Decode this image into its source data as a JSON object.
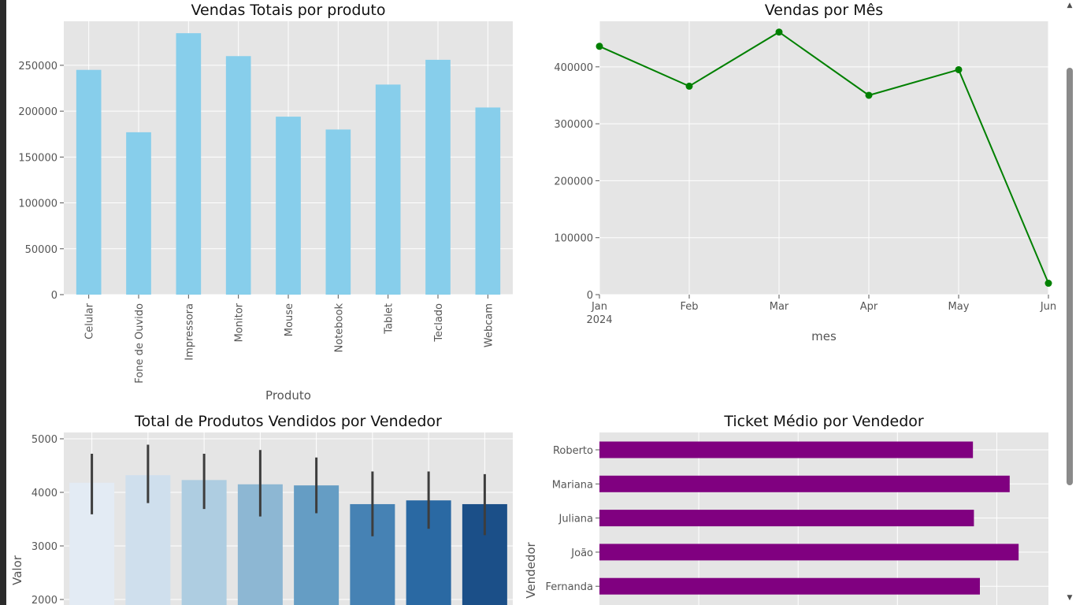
{
  "scrollbar": {
    "up_icon": "▲",
    "down_icon": "▼"
  },
  "chart_data": [
    {
      "type": "bar",
      "title": "Vendas Totais por produto",
      "xlabel": "Produto",
      "ylabel": "",
      "categories": [
        "Celular",
        "Fone de Ouvido",
        "Impressora",
        "Monitor",
        "Mouse",
        "Notebook",
        "Tablet",
        "Teclado",
        "Webcam"
      ],
      "values": [
        245000,
        177000,
        285000,
        260000,
        194000,
        180000,
        229000,
        256000,
        204000
      ],
      "ylim": [
        0,
        298000
      ],
      "yticks": [
        0,
        50000,
        100000,
        150000,
        200000,
        250000
      ],
      "color": "#87ceeb",
      "grid": true
    },
    {
      "type": "line",
      "title": "Vendas por Mês",
      "xlabel": "mes",
      "ylabel": "",
      "x": [
        "Jan",
        "Feb",
        "Mar",
        "Apr",
        "May",
        "Jun"
      ],
      "x_sublabel": "2024",
      "values": [
        436000,
        366000,
        461000,
        350000,
        395000,
        20000
      ],
      "ylim": [
        0,
        480000
      ],
      "yticks": [
        0,
        100000,
        200000,
        300000,
        400000
      ],
      "color": "#008000",
      "grid": true
    },
    {
      "type": "bar",
      "title": "Total de Produtos Vendidos por Vendedor",
      "xlabel": "",
      "ylabel": "Valor",
      "values": [
        4180,
        4320,
        4230,
        4150,
        4130,
        3780,
        3850,
        3780
      ],
      "errors": [
        [
          3590,
          4720
        ],
        [
          3800,
          4890
        ],
        [
          3690,
          4720
        ],
        [
          3550,
          4790
        ],
        [
          3610,
          4650
        ],
        [
          3180,
          4390
        ],
        [
          3320,
          4390
        ],
        [
          3200,
          4340
        ]
      ],
      "yticks": [
        2000,
        3000,
        4000,
        5000
      ],
      "colors": [
        "#e3ebf4",
        "#cfdfed",
        "#aecde1",
        "#8db7d3",
        "#659dc4",
        "#4682b4",
        "#2a69a3",
        "#1b4f88"
      ],
      "grid": true
    },
    {
      "type": "bar",
      "orientation": "horizontal",
      "title": "Ticket Médio por Vendedor",
      "xlabel": "",
      "ylabel": "Vendedor",
      "categories": [
        "Roberto",
        "Mariana",
        "Juliana",
        "João",
        "Fernanda"
      ],
      "values": [
        3760,
        4130,
        3770,
        4220,
        3830
      ],
      "xlim": [
        0,
        4520
      ],
      "color": "#800080",
      "grid": true
    }
  ]
}
